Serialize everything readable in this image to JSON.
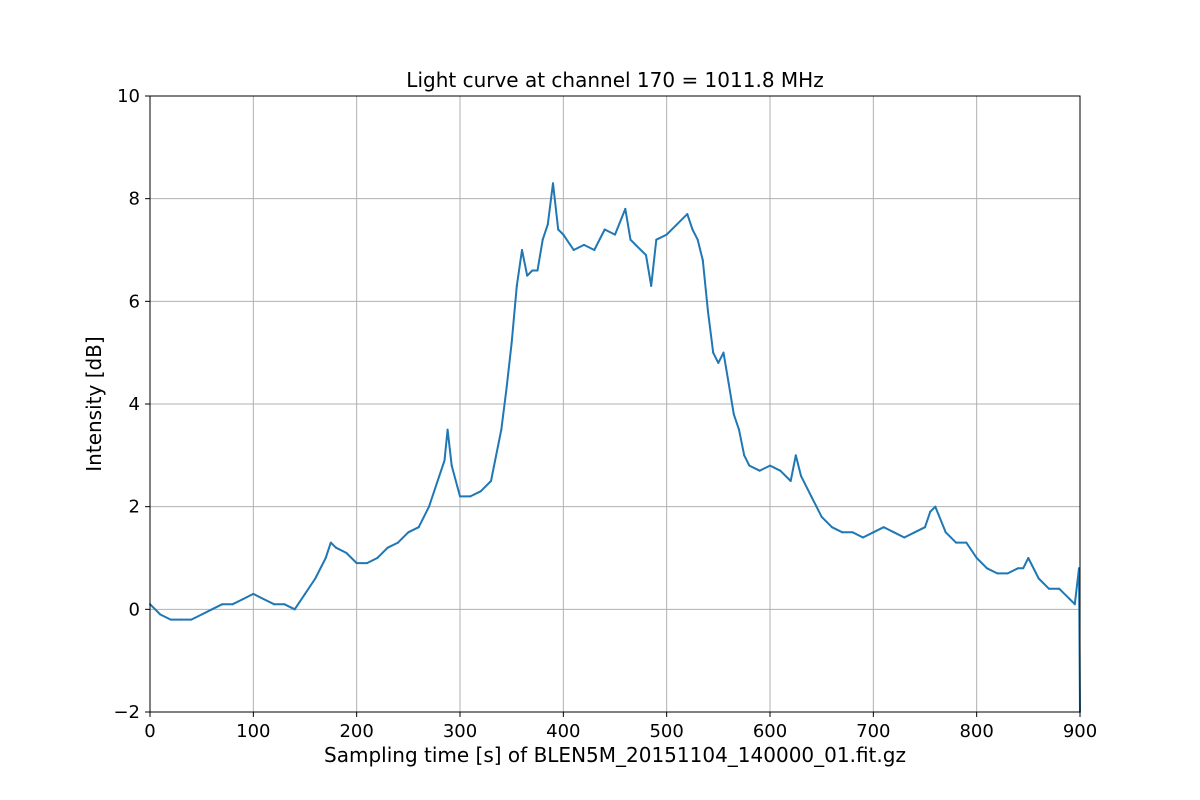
{
  "chart_data": {
    "type": "line",
    "title": "Light curve at channel 170 = 1011.8 MHz",
    "xlabel": "Sampling time [s] of BLEN5M_20151104_140000_01.fit.gz",
    "ylabel": "Intensity [dB]",
    "xlim": [
      0,
      900
    ],
    "ylim": [
      -2,
      10
    ],
    "xticks": [
      0,
      100,
      200,
      300,
      400,
      500,
      600,
      700,
      800,
      900
    ],
    "yticks": [
      -2,
      0,
      2,
      4,
      6,
      8,
      10
    ],
    "grid": true,
    "series": [
      {
        "color": "#1f77b4",
        "x": [
          0,
          10,
          20,
          30,
          40,
          50,
          60,
          70,
          80,
          90,
          100,
          110,
          120,
          130,
          140,
          150,
          160,
          170,
          175,
          180,
          190,
          200,
          210,
          220,
          230,
          240,
          250,
          260,
          270,
          280,
          285,
          288,
          292,
          300,
          310,
          320,
          330,
          340,
          345,
          350,
          355,
          360,
          365,
          370,
          375,
          380,
          385,
          390,
          395,
          400,
          410,
          420,
          430,
          440,
          450,
          460,
          465,
          470,
          480,
          485,
          490,
          500,
          510,
          520,
          525,
          530,
          535,
          540,
          545,
          550,
          555,
          560,
          565,
          570,
          575,
          580,
          590,
          600,
          610,
          620,
          625,
          630,
          640,
          650,
          660,
          670,
          680,
          690,
          700,
          710,
          720,
          730,
          740,
          750,
          755,
          760,
          770,
          780,
          790,
          800,
          810,
          820,
          830,
          840,
          845,
          850,
          860,
          870,
          880,
          890,
          895,
          899,
          900
        ],
        "y": [
          0.1,
          -0.1,
          -0.2,
          -0.2,
          -0.2,
          -0.1,
          0.0,
          0.1,
          0.1,
          0.2,
          0.3,
          0.2,
          0.1,
          0.1,
          0.0,
          0.3,
          0.6,
          1.0,
          1.3,
          1.2,
          1.1,
          0.9,
          0.9,
          1.0,
          1.2,
          1.3,
          1.5,
          1.6,
          2.0,
          2.6,
          2.9,
          3.5,
          2.8,
          2.2,
          2.2,
          2.3,
          2.5,
          3.5,
          4.3,
          5.2,
          6.3,
          7.0,
          6.5,
          6.6,
          6.6,
          7.2,
          7.5,
          8.3,
          7.4,
          7.3,
          7.0,
          7.1,
          7.0,
          7.4,
          7.3,
          7.8,
          7.2,
          7.1,
          6.9,
          6.3,
          7.2,
          7.3,
          7.5,
          7.7,
          7.4,
          7.2,
          6.8,
          5.8,
          5.0,
          4.8,
          5.0,
          4.4,
          3.8,
          3.5,
          3.0,
          2.8,
          2.7,
          2.8,
          2.7,
          2.5,
          3.0,
          2.6,
          2.2,
          1.8,
          1.6,
          1.5,
          1.5,
          1.4,
          1.5,
          1.6,
          1.5,
          1.4,
          1.5,
          1.6,
          1.9,
          2.0,
          1.5,
          1.3,
          1.3,
          1.0,
          0.8,
          0.7,
          0.7,
          0.8,
          0.8,
          1.0,
          0.6,
          0.4,
          0.4,
          0.2,
          0.1,
          0.8,
          -2.0
        ]
      }
    ]
  }
}
